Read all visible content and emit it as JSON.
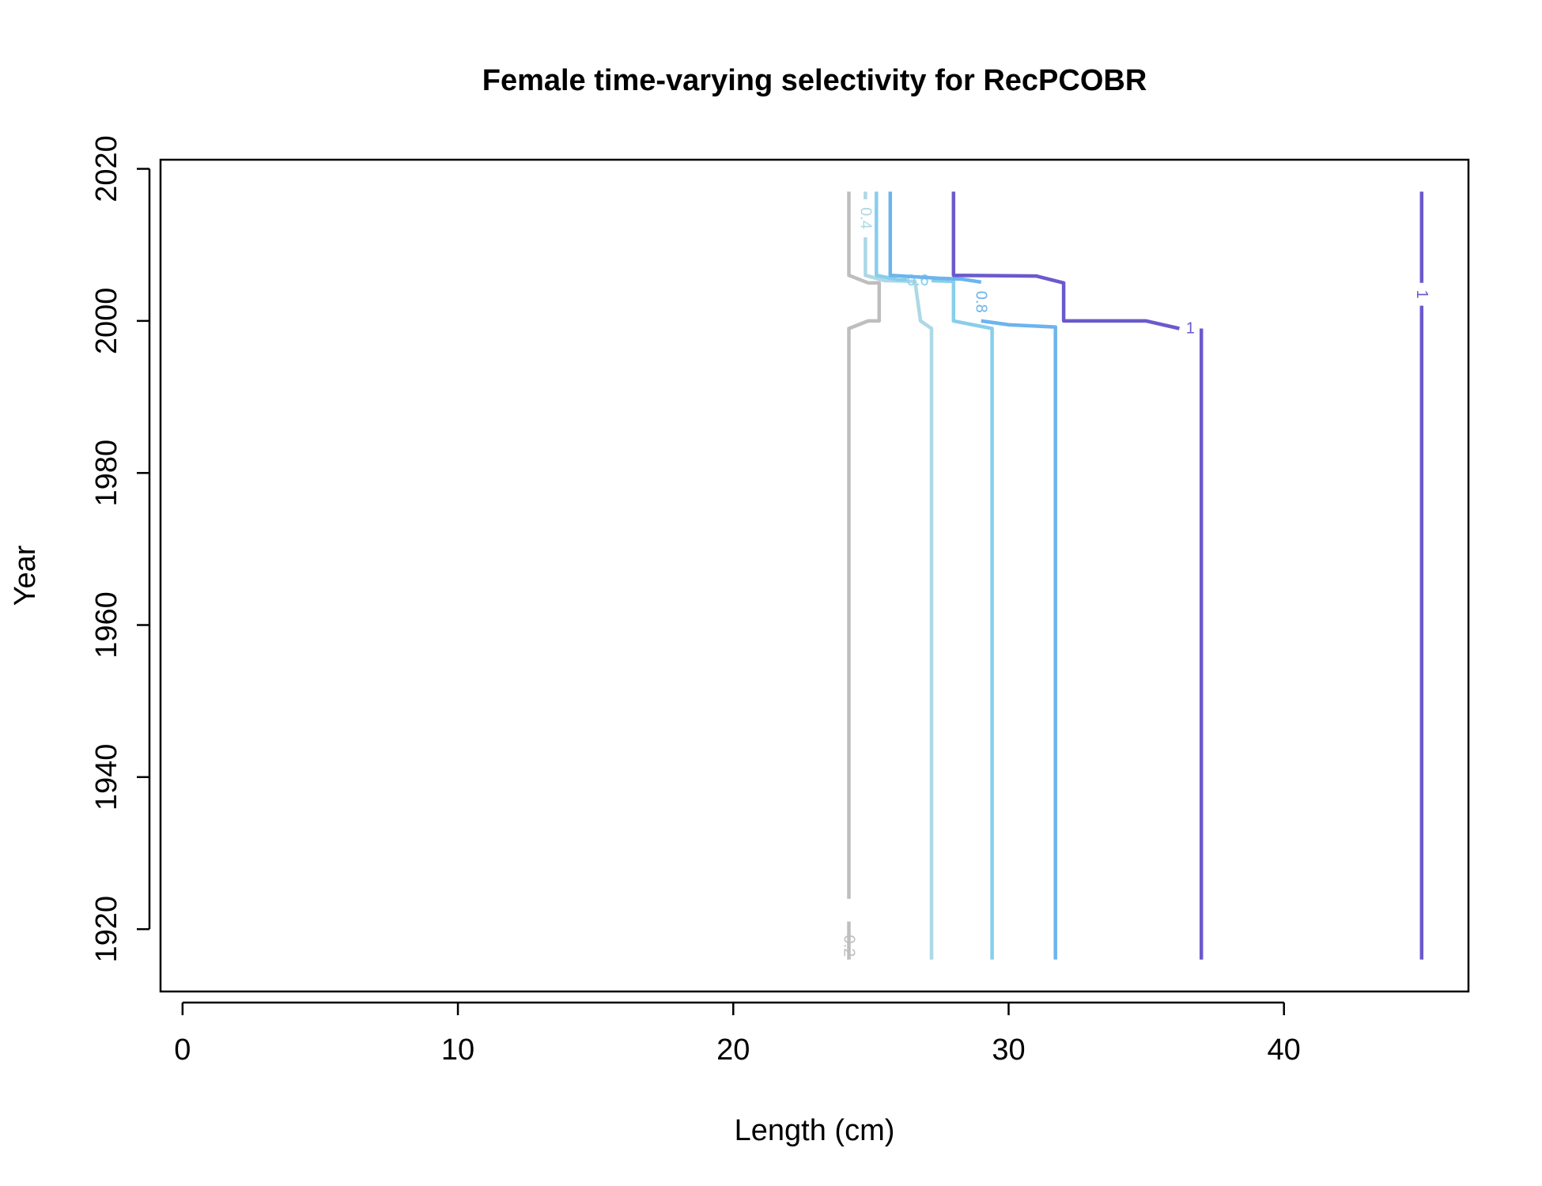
{
  "chart_data": {
    "type": "contour",
    "title": "Female time-varying selectivity for RecPCOBR",
    "xlabel": "Length (cm)",
    "ylabel": "Year",
    "xlim": [
      -0.8,
      46.7
    ],
    "ylim": [
      1911.8,
      2021.2
    ],
    "x_ticks": [
      0,
      10,
      20,
      30,
      40
    ],
    "y_ticks": [
      1920,
      1940,
      1960,
      1980,
      2000,
      2020
    ],
    "x_tick_labels": [
      "0",
      "10",
      "20",
      "30",
      "40"
    ],
    "y_tick_labels": [
      "1920",
      "1940",
      "1960",
      "1980",
      "2000",
      "2020"
    ],
    "grid": false,
    "legend": "none",
    "contours": [
      {
        "level": "0.2",
        "color": "#BEBEBE",
        "segments": [
          [
            [
              24.2,
              1916
            ],
            [
              24.2,
              1921
            ]
          ],
          [
            [
              24.2,
              1924
            ],
            [
              24.2,
              1999
            ],
            [
              24.9,
              2000
            ],
            [
              25.3,
              2000
            ],
            [
              25.3,
              2005
            ],
            [
              24.9,
              2005
            ],
            [
              24.2,
              2006
            ],
            [
              24.2,
              2017
            ]
          ]
        ],
        "labels": [
          {
            "text": "0.2",
            "x": 24.2,
            "y": 1917.8,
            "rotate": 90
          }
        ]
      },
      {
        "level": "0.4",
        "color": "#ADD8E6",
        "segments": [
          [
            [
              24.8,
              2017
            ],
            [
              24.8,
              2016
            ]
          ],
          [
            [
              24.8,
              2011
            ],
            [
              24.8,
              2006
            ],
            [
              25.5,
              2005.3
            ],
            [
              26.6,
              2005.2
            ],
            [
              26.8,
              2000
            ],
            [
              27.2,
              1999
            ],
            [
              27.2,
              1916
            ]
          ]
        ],
        "labels": [
          {
            "text": "0.4",
            "x": 24.8,
            "y": 2013.5,
            "rotate": 90
          }
        ]
      },
      {
        "level": "0.6",
        "color": "#87CEEB",
        "segments": [
          [
            [
              25.2,
              2017
            ],
            [
              25.2,
              2006
            ],
            [
              26.0,
              2005.4
            ],
            [
              26.3,
              2005.4
            ]
          ],
          [
            [
              27.2,
              2005.3
            ],
            [
              28.0,
              2005.2
            ],
            [
              28.0,
              2000
            ],
            [
              29.4,
              1999
            ],
            [
              29.4,
              1916
            ]
          ]
        ],
        "labels": [
          {
            "text": "0.6",
            "x": 26.7,
            "y": 2005.3,
            "rotate": 0
          }
        ]
      },
      {
        "level": "0.8",
        "color": "#6CB4EE",
        "segments": [
          [
            [
              25.7,
              2017
            ],
            [
              25.7,
              2006
            ],
            [
              27.5,
              2005.6
            ],
            [
              28.3,
              2005.5
            ],
            [
              29.0,
              2005.1
            ]
          ],
          [
            [
              29.0,
              2000
            ],
            [
              30.0,
              1999.5
            ],
            [
              31.7,
              1999.2
            ],
            [
              31.7,
              1916
            ]
          ]
        ],
        "labels": [
          {
            "text": "0.8",
            "x": 29.0,
            "y": 2002.5,
            "rotate": 90
          }
        ]
      },
      {
        "level": "1",
        "color": "#6A5ACD",
        "segments": [
          [
            [
              28.0,
              2017
            ],
            [
              28.0,
              2006
            ],
            [
              31.0,
              2005.9
            ],
            [
              32.0,
              2005
            ],
            [
              32.0,
              2000
            ],
            [
              35.0,
              2000
            ],
            [
              36.2,
              1999
            ]
          ],
          [
            [
              37.0,
              1999
            ],
            [
              37.0,
              1916
            ]
          ],
          [
            [
              45.0,
              2017
            ],
            [
              45.0,
              2005
            ]
          ],
          [
            [
              45.0,
              2002
            ],
            [
              45.0,
              1916
            ]
          ]
        ],
        "labels": [
          {
            "text": "1",
            "x": 36.6,
            "y": 1999.0,
            "rotate": 0
          },
          {
            "text": "1",
            "x": 45.0,
            "y": 2003.5,
            "rotate": 90
          }
        ]
      }
    ]
  }
}
